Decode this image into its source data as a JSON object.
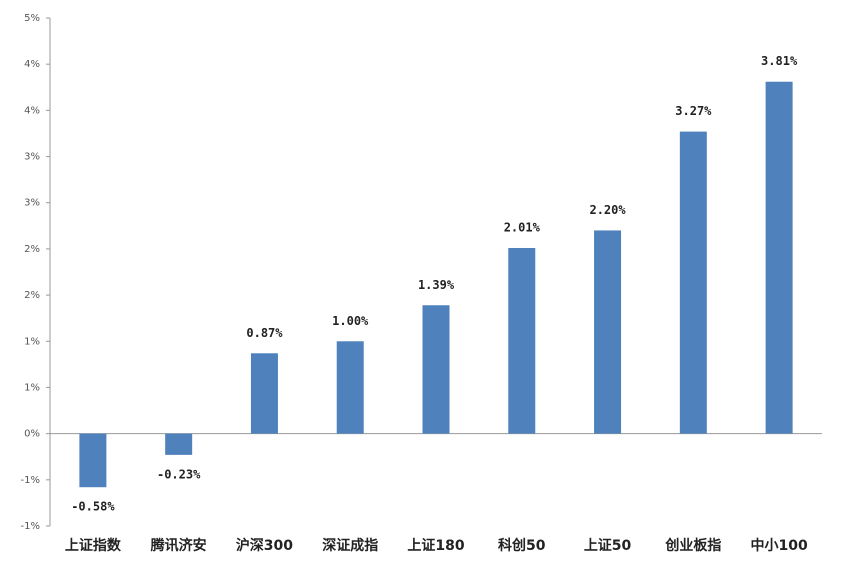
{
  "chart_data": {
    "type": "bar",
    "categories": [
      "上证指数",
      "腾讯济安",
      "沪深300",
      "深证成指",
      "上证180",
      "科创50",
      "上证50",
      "创业板指",
      "中小100"
    ],
    "values": [
      -0.58,
      -0.23,
      0.87,
      1.0,
      1.39,
      2.01,
      2.2,
      3.27,
      3.81
    ],
    "value_labels": [
      "-0.58%",
      "-0.23%",
      "0.87%",
      "1.00%",
      "1.39%",
      "2.01%",
      "2.20%",
      "3.27%",
      "3.81%"
    ],
    "color": "#4f81bd",
    "ylim": [
      -1,
      4.5
    ],
    "yticks": [
      {
        "value": -1,
        "label": "-1%"
      },
      {
        "value": -0.5,
        "label": "-1%"
      },
      {
        "value": 0,
        "label": "0%"
      },
      {
        "value": 0.5,
        "label": "1%"
      },
      {
        "value": 1,
        "label": "1%"
      },
      {
        "value": 1.5,
        "label": "2%"
      },
      {
        "value": 2,
        "label": "2%"
      },
      {
        "value": 2.5,
        "label": "3%"
      },
      {
        "value": 3,
        "label": "3%"
      },
      {
        "value": 3.5,
        "label": "4%"
      },
      {
        "value": 4,
        "label": "4%"
      },
      {
        "value": 4.5,
        "label": "5%"
      }
    ],
    "grid": false
  }
}
